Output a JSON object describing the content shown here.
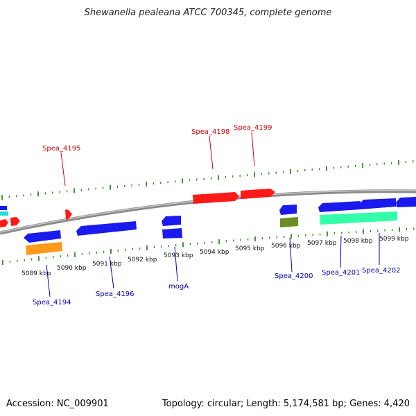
{
  "title": "Shewanella pealeana ATCC 700345, complete genome",
  "footer": {
    "accession": "Accession: NC_009901",
    "summary": "Topology: circular; Length: 5,174,581 bp; Genes: 4,420"
  },
  "colors": {
    "backbone": "#8a8a8a",
    "ticks": "#2e8b1e",
    "forward_label": "#cc0000",
    "reverse_label": "#0000aa",
    "forward_gene": "#ff1a1a",
    "reverse_gene": "#1a1aee",
    "orange_gene": "#ff9a1a",
    "olive_gene": "#6b8e23",
    "teal_gene": "#33ffaa",
    "cyan_gene": "#22dddd"
  },
  "scale": {
    "labels": [
      "5089 kbp",
      "5090 kbp",
      "5091 kbp",
      "5092 kbp",
      "5093 kbp",
      "5094 kbp",
      "5095 kbp",
      "5096 kbp",
      "5097 kbp",
      "5098 kbp",
      "5099 kbp"
    ]
  },
  "gene_labels": {
    "forward": [
      "Spea_4195",
      "Spea_4198",
      "Spea_4199"
    ],
    "reverse": [
      "Spea_4194",
      "Spea_4196",
      "mogA",
      "Spea_4200",
      "Spea_4201",
      "Spea_4202"
    ]
  }
}
